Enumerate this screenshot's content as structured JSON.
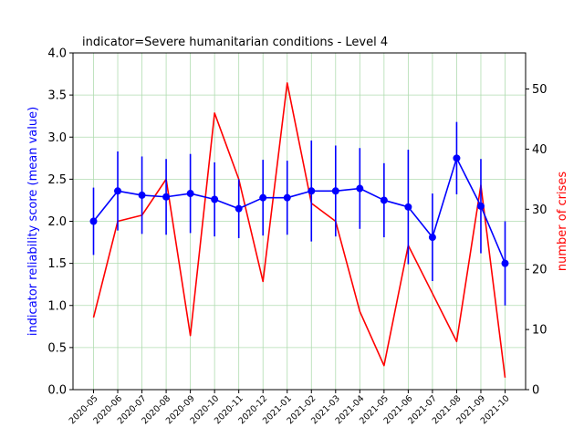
{
  "chart_data": {
    "type": "line",
    "title": "indicator=Severe humanitarian conditions - Level 4",
    "categories": [
      "2020-05",
      "2020-06",
      "2020-07",
      "2020-08",
      "2020-09",
      "2020-10",
      "2020-11",
      "2020-12",
      "2021-01",
      "2021-02",
      "2021-03",
      "2021-04",
      "2021-05",
      "2021-06",
      "2021-07",
      "2021-08",
      "2021-09",
      "2021-10"
    ],
    "left_axis": {
      "label": "indicator reliability score (mean value)",
      "color": "#0000ff",
      "ylim": [
        0,
        4.0
      ],
      "ticks": [
        "0.0",
        "0.5",
        "1.0",
        "1.5",
        "2.0",
        "2.5",
        "3.0",
        "3.5",
        "4.0"
      ]
    },
    "right_axis": {
      "label": "number of crises",
      "color": "#ff0000",
      "ylim": [
        0,
        56
      ],
      "ticks": [
        "0",
        "10",
        "20",
        "30",
        "40",
        "50"
      ]
    },
    "grid": true,
    "series": [
      {
        "axis": "left",
        "color": "#0000ff",
        "marker": "circle",
        "values": [
          2.0,
          2.36,
          2.31,
          2.29,
          2.33,
          2.26,
          2.15,
          2.28,
          2.28,
          2.36,
          2.36,
          2.39,
          2.25,
          2.17,
          1.81,
          2.75,
          2.18,
          1.5
        ],
        "errors": [
          0.4,
          0.47,
          0.46,
          0.45,
          0.47,
          0.44,
          0.35,
          0.45,
          0.44,
          0.6,
          0.54,
          0.48,
          0.44,
          0.68,
          0.52,
          0.43,
          0.56,
          0.5
        ]
      },
      {
        "axis": "right",
        "color": "#ff0000",
        "values": [
          12,
          28,
          29,
          35,
          9,
          46,
          35,
          18,
          51,
          31,
          28,
          13,
          4,
          24,
          16,
          8,
          34,
          2
        ]
      }
    ]
  }
}
